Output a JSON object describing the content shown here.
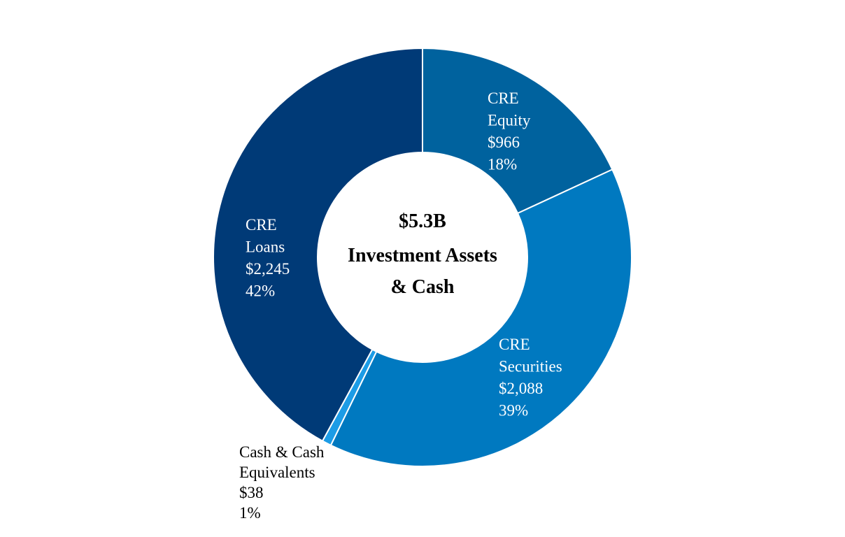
{
  "chart_data": {
    "type": "pie",
    "center_label": {
      "total": "$5.3B",
      "line1": "Investment Assets",
      "line2": "& Cash"
    },
    "slices": [
      {
        "key": "equity",
        "name_lines": [
          "CRE",
          "Equity"
        ],
        "amount": "$966",
        "percent": "18%",
        "value": 966,
        "color": "#00629e",
        "label_color": "#ffffff"
      },
      {
        "key": "securities",
        "name_lines": [
          "CRE",
          "Securities"
        ],
        "amount": "$2,088",
        "percent": "39%",
        "value": 2088,
        "color": "#0079c0",
        "label_color": "#ffffff"
      },
      {
        "key": "cash",
        "name_lines": [
          "Cash & Cash",
          "Equivalents"
        ],
        "amount": "$38",
        "percent": "1%",
        "value": 38,
        "color": "#1c9ce6",
        "label_color": "#000000"
      },
      {
        "key": "loans",
        "name_lines": [
          "CRE",
          "Loans"
        ],
        "amount": "$2,245",
        "percent": "42%",
        "value": 2245,
        "color": "#003a77",
        "label_color": "#ffffff"
      }
    ]
  }
}
